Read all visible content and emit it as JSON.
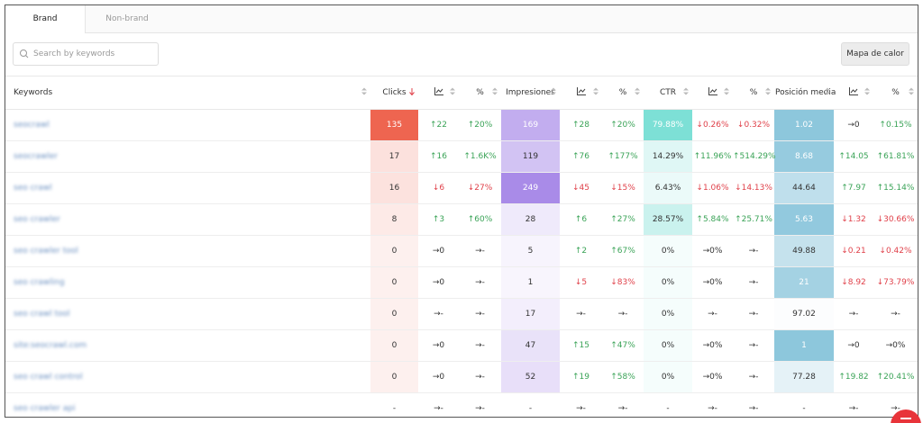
{
  "tabs": [
    "Brand",
    "Non-brand"
  ],
  "search_placeholder": "Search by keywords",
  "button": "Mapa de calor",
  "header": {
    "keyword": "Keywords",
    "columns": [
      "Clicks",
      "",
      "%",
      "Impresiones",
      "",
      "%",
      "CTR",
      "",
      "%",
      "Posición media",
      "",
      "%"
    ]
  },
  "rows": [
    {
      "keyword": "seocrawl",
      "cells": [
        "135",
        "↑22",
        "↑20%",
        "169",
        "↑28",
        "↑20%",
        "79.88%",
        "↓0.26%",
        "↓0.32%",
        "1.02",
        "→0",
        "↑0.15%"
      ]
    },
    {
      "keyword": "seocrawler",
      "cells": [
        "17",
        "↑16",
        "↑1.6K%",
        "119",
        "↑76",
        "↑177%",
        "14.29%",
        "↑11.96%",
        "↑514.29%",
        "8.68",
        "↑14.05",
        "↑61.81%"
      ]
    },
    {
      "keyword": "seo crawl",
      "cells": [
        "16",
        "↓6",
        "↓27%",
        "249",
        "↓45",
        "↓15%",
        "6.43%",
        "↓1.06%",
        "↓14.13%",
        "44.64",
        "↑7.97",
        "↑15.14%"
      ]
    },
    {
      "keyword": "seo crawler",
      "cells": [
        "8",
        "↑3",
        "↑60%",
        "28",
        "↑6",
        "↑27%",
        "28.57%",
        "↑5.84%",
        "↑25.71%",
        "5.63",
        "↓1.32",
        "↓30.66%"
      ]
    },
    {
      "keyword": "seo crawler tool",
      "cells": [
        "0",
        "→0",
        "→-",
        "5",
        "↑2",
        "↑67%",
        "0%",
        "→0%",
        "→-",
        "49.88",
        "↓0.21",
        "↓0.42%"
      ]
    },
    {
      "keyword": "seo crawling",
      "cells": [
        "0",
        "→0",
        "→-",
        "1",
        "↓5",
        "↓83%",
        "0%",
        "→0%",
        "→-",
        "21",
        "↓8.92",
        "↓73.79%"
      ]
    },
    {
      "keyword": "seo crawl tool",
      "cells": [
        "0",
        "→-",
        "→-",
        "17",
        "→-",
        "→-",
        "0%",
        "→-",
        "→-",
        "97.02",
        "→-",
        "→-"
      ]
    },
    {
      "keyword": "site:seocrawl.com",
      "cells": [
        "0",
        "→0",
        "→-",
        "47",
        "↑15",
        "↑47%",
        "0%",
        "→0%",
        "→-",
        "1",
        "→0",
        "→0%"
      ]
    },
    {
      "keyword": "seo crawl control",
      "cells": [
        "0",
        "→0",
        "→-",
        "52",
        "↑19",
        "↑58%",
        "0%",
        "→0%",
        "→-",
        "77.28",
        "↑19.82",
        "↑20.41%"
      ]
    },
    {
      "keyword": "seo crawler api",
      "cells": [
        "-",
        "→-",
        "→-",
        "-",
        "→-",
        "→-",
        "-",
        "→-",
        "→-",
        "-",
        "→-",
        "→-"
      ]
    }
  ]
}
